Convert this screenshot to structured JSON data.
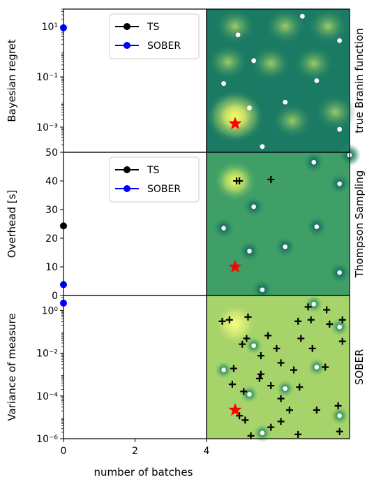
{
  "chart_data": [
    {
      "type": "line",
      "panel": "top-left",
      "ylabel": "Bayesian regret",
      "yscale": "log",
      "ylim": [
        0.0001,
        50
      ],
      "ytick_labels": [
        "10¹",
        "10⁻¹",
        "10⁻³"
      ],
      "ytick_values": [
        10,
        0.1,
        0.001
      ],
      "xlim": [
        0,
        4
      ],
      "legend": "top-center",
      "series": [
        {
          "name": "TS",
          "color": "#000000",
          "x": [],
          "y": []
        },
        {
          "name": "SOBER",
          "color": "#0000ff",
          "x": [
            0
          ],
          "y": [
            9
          ]
        }
      ]
    },
    {
      "type": "line",
      "panel": "middle-left",
      "ylabel": "Overhead [s]",
      "ylim": [
        0,
        50
      ],
      "ytick_labels": [
        "50",
        "40",
        "30",
        "20",
        "10",
        "0"
      ],
      "ytick_values": [
        50,
        40,
        30,
        20,
        10,
        0
      ],
      "xlim": [
        0,
        4
      ],
      "legend": "top-center",
      "series": [
        {
          "name": "TS",
          "color": "#000000",
          "x": [
            0
          ],
          "y": [
            24.3
          ]
        },
        {
          "name": "SOBER",
          "color": "#0000ff",
          "x": [
            0
          ],
          "y": [
            3.8
          ]
        }
      ]
    },
    {
      "type": "line",
      "panel": "bottom-left",
      "ylabel": "Variance of measure",
      "yscale": "log",
      "ylim": [
        1e-06,
        5
      ],
      "ytick_labels": [
        "10⁰",
        "10⁻²",
        "10⁻⁴",
        "10⁻⁶"
      ],
      "ytick_values": [
        1,
        0.01,
        0.0001,
        1e-06
      ],
      "xlabel": "number of batches",
      "xtick_labels": [
        "0",
        "2",
        "4"
      ],
      "xtick_values": [
        0,
        2,
        4
      ],
      "xlim": [
        0,
        4
      ],
      "series": [
        {
          "name": "SOBER",
          "color": "#0000ff",
          "x": [
            0
          ],
          "y": [
            2.2
          ]
        }
      ]
    },
    {
      "type": "heatmap",
      "panel": "top-right",
      "side_label": "true Branin function",
      "colormap": "summer",
      "background": "#1a7a63",
      "maxima": [
        [
          0.2,
          0.25
        ],
        [
          0.6,
          0.22
        ],
        [
          0.9,
          0.28
        ],
        [
          0.15,
          0.63
        ],
        [
          0.45,
          0.62
        ],
        [
          0.75,
          0.62
        ],
        [
          0.2,
          0.88
        ],
        [
          0.55,
          0.88
        ],
        [
          0.85,
          0.88
        ]
      ],
      "optimum_star": [
        0.2,
        0.2
      ],
      "points": [
        [
          0.22,
          0.82
        ],
        [
          0.67,
          0.95
        ],
        [
          0.93,
          0.78
        ],
        [
          0.33,
          0.64
        ],
        [
          0.12,
          0.48
        ],
        [
          0.77,
          0.5
        ],
        [
          0.55,
          0.35
        ],
        [
          0.3,
          0.31
        ],
        [
          0.93,
          0.16
        ],
        [
          0.39,
          0.04
        ]
      ]
    },
    {
      "type": "heatmap",
      "panel": "middle-right",
      "side_label": "Thompson Sampling",
      "colormap": "summer",
      "background": "#3f9f66",
      "bright_spot": [
        0.2,
        0.8
      ],
      "dark_spots": [
        [
          0.75,
          0.93
        ],
        [
          0.93,
          0.78
        ],
        [
          0.33,
          0.62
        ],
        [
          0.12,
          0.47
        ],
        [
          0.77,
          0.48
        ],
        [
          0.55,
          0.34
        ],
        [
          0.3,
          0.31
        ],
        [
          0.93,
          0.16
        ],
        [
          0.39,
          0.04
        ],
        [
          1.0,
          0.98
        ]
      ],
      "optimum_star": [
        0.2,
        0.2
      ],
      "samples": [
        [
          0.21,
          0.8
        ],
        [
          0.23,
          0.8
        ],
        [
          0.45,
          0.81
        ]
      ]
    },
    {
      "type": "heatmap",
      "panel": "bottom-right",
      "side_label": "SOBER",
      "colormap": "summer",
      "background": "#a6d46a",
      "bright_spot": [
        0.2,
        0.8
      ],
      "dark_spots": [
        [
          0.75,
          0.94
        ],
        [
          0.93,
          0.78
        ],
        [
          0.33,
          0.65
        ],
        [
          0.12,
          0.48
        ],
        [
          0.77,
          0.5
        ],
        [
          0.55,
          0.35
        ],
        [
          0.3,
          0.31
        ],
        [
          0.93,
          0.16
        ],
        [
          0.39,
          0.04
        ]
      ],
      "optimum_star": [
        0.2,
        0.2
      ],
      "samples": [
        [
          0.11,
          0.82
        ],
        [
          0.16,
          0.83
        ],
        [
          0.29,
          0.85
        ],
        [
          0.64,
          0.82
        ],
        [
          0.73,
          0.83
        ],
        [
          0.86,
          0.8
        ],
        [
          0.95,
          0.83
        ],
        [
          0.71,
          0.92
        ],
        [
          0.84,
          0.9
        ],
        [
          0.28,
          0.7
        ],
        [
          0.43,
          0.72
        ],
        [
          0.66,
          0.7
        ],
        [
          0.95,
          0.68
        ],
        [
          0.25,
          0.66
        ],
        [
          0.49,
          0.63
        ],
        [
          0.74,
          0.63
        ],
        [
          0.38,
          0.58
        ],
        [
          0.52,
          0.53
        ],
        [
          0.19,
          0.49
        ],
        [
          0.61,
          0.48
        ],
        [
          0.38,
          0.45
        ],
        [
          0.83,
          0.5
        ],
        [
          0.37,
          0.42
        ],
        [
          0.18,
          0.38
        ],
        [
          0.45,
          0.37
        ],
        [
          0.65,
          0.36
        ],
        [
          0.26,
          0.33
        ],
        [
          0.52,
          0.28
        ],
        [
          0.58,
          0.2
        ],
        [
          0.77,
          0.2
        ],
        [
          0.92,
          0.23
        ],
        [
          0.23,
          0.16
        ],
        [
          0.52,
          0.12
        ],
        [
          0.27,
          0.13
        ],
        [
          0.45,
          0.08
        ],
        [
          0.31,
          0.02
        ],
        [
          0.64,
          0.03
        ],
        [
          0.93,
          0.05
        ]
      ]
    }
  ]
}
